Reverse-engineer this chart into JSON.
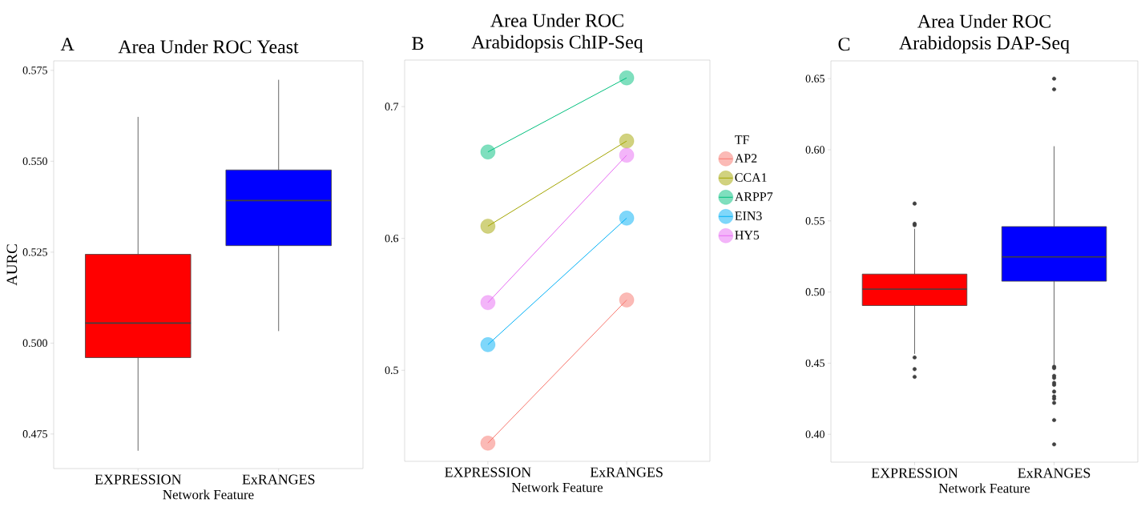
{
  "chart_data": [
    {
      "type": "box",
      "title": "Area Under ROC Yeast",
      "annotations": [
        "A"
      ],
      "xlabel": "Network Feature",
      "ylabel": "AURC",
      "categories": [
        "EXPRESSION",
        "ExRANGES"
      ],
      "colors": [
        "#ff0000",
        "#0000ff"
      ],
      "boxes": [
        {
          "low": 0.4704,
          "q1": 0.496,
          "median": 0.5055,
          "q3": 0.5244,
          "high": 0.5622
        },
        {
          "low": 0.5033,
          "q1": 0.5268,
          "median": 0.5392,
          "q3": 0.5476,
          "high": 0.5724
        }
      ],
      "ylim": [
        0.4655,
        0.5776
      ],
      "yticks": [
        {
          "value": 0.475,
          "label": "0.475"
        },
        {
          "value": 0.5,
          "label": "0.500"
        },
        {
          "value": 0.525,
          "label": "0.525"
        },
        {
          "value": 0.55,
          "label": "0.550"
        },
        {
          "value": 0.575,
          "label": "0.575"
        }
      ]
    },
    {
      "type": "line",
      "title": "Area Under ROC",
      "subtitle": "Arabidopsis ChIP-Seq",
      "annotations": [
        "B"
      ],
      "xlabel": "Network Feature",
      "categories": [
        "EXPRESSION",
        "ExRANGES"
      ],
      "legend": "right",
      "legend_title": "TF",
      "marker": "circle",
      "series": [
        {
          "name": "AP2",
          "color": "#f8766d",
          "values": [
            0.4447,
            0.5533
          ]
        },
        {
          "name": "CCA1",
          "color": "#a3a500",
          "values": [
            0.6093,
            0.6739
          ]
        },
        {
          "name": "ARPP7",
          "color": "#00bf7d",
          "values": [
            0.6656,
            0.7218
          ]
        },
        {
          "name": "EIN3",
          "color": "#00b0f6",
          "values": [
            0.5194,
            0.6154
          ]
        },
        {
          "name": "HY5",
          "color": "#e76bf3",
          "values": [
            0.5513,
            0.6631
          ]
        }
      ],
      "ylim": [
        0.4309,
        0.7353
      ],
      "yticks": [
        0.5,
        0.6,
        0.7
      ]
    },
    {
      "type": "box",
      "title": "Area Under ROC",
      "subtitle": "Arabidopsis DAP-Seq",
      "annotations": [
        "C"
      ],
      "xlabel": "Network Feature",
      "categories": [
        "EXPRESSION",
        "ExRANGES"
      ],
      "colors": [
        "#ff0000",
        "#0000ff"
      ],
      "boxes": [
        {
          "low": 0.4565,
          "q1": 0.4905,
          "median": 0.502,
          "q3": 0.5126,
          "high": 0.5445,
          "outliers": [
            0.5622,
            0.548,
            0.547,
            0.454,
            0.4458,
            0.4404
          ]
        },
        {
          "low": 0.449,
          "q1": 0.5076,
          "median": 0.5247,
          "q3": 0.546,
          "high": 0.6025,
          "outliers": [
            0.65,
            0.6425,
            0.4475,
            0.4465,
            0.4411,
            0.4396,
            0.4361,
            0.4348,
            0.43,
            0.4266,
            0.425,
            0.4221,
            0.41,
            0.3929
          ]
        }
      ],
      "ylim": [
        0.3804,
        0.6625
      ],
      "yticks": [
        {
          "value": 0.4,
          "label": "0.40"
        },
        {
          "value": 0.45,
          "label": "0.45"
        },
        {
          "value": 0.5,
          "label": "0.50"
        },
        {
          "value": 0.55,
          "label": "0.55"
        },
        {
          "value": 0.6,
          "label": "0.60"
        },
        {
          "value": 0.65,
          "label": "0.65"
        }
      ]
    }
  ]
}
